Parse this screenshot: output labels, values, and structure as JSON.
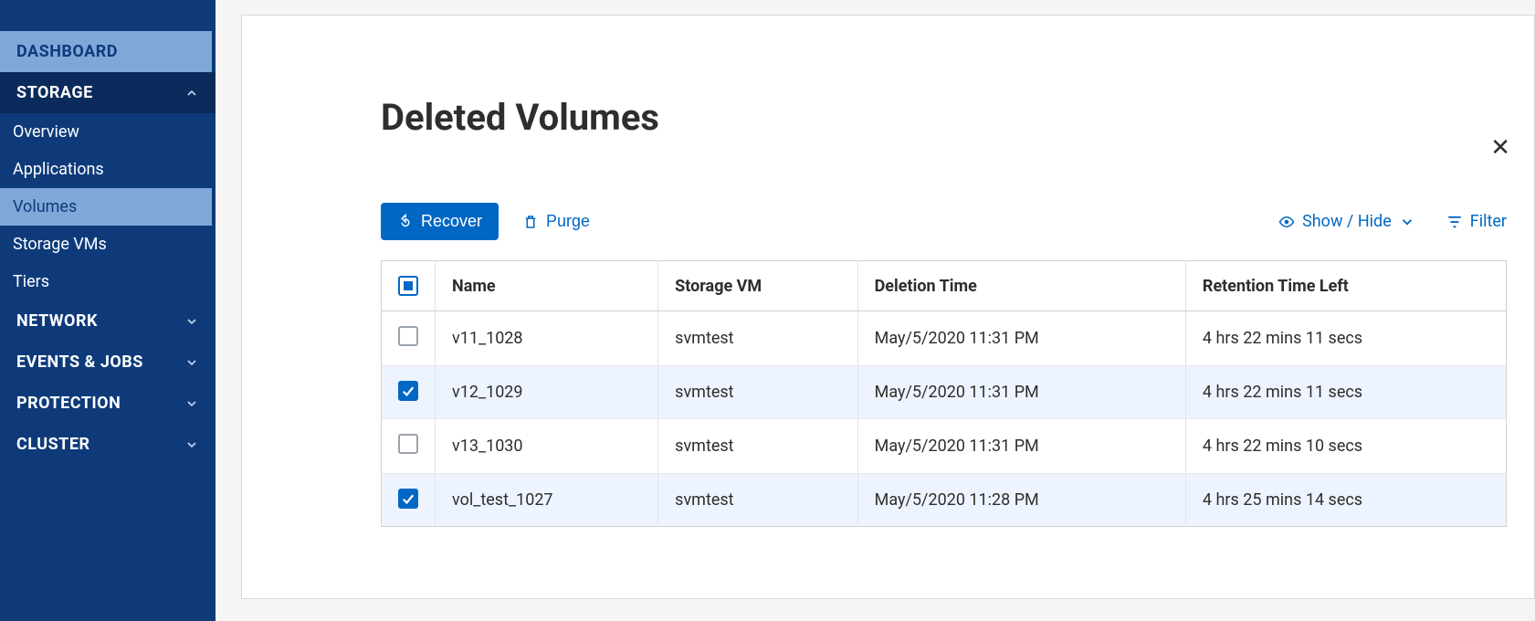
{
  "sidebar": {
    "items": [
      {
        "label": "DASHBOARD",
        "kind": "top",
        "style": "dashboard"
      },
      {
        "label": "STORAGE",
        "kind": "top",
        "expanded": true,
        "style": "expanded"
      },
      {
        "label": "Overview",
        "kind": "sub"
      },
      {
        "label": "Applications",
        "kind": "sub"
      },
      {
        "label": "Volumes",
        "kind": "sub",
        "active": true
      },
      {
        "label": "Storage VMs",
        "kind": "sub"
      },
      {
        "label": "Tiers",
        "kind": "sub"
      },
      {
        "label": "NETWORK",
        "kind": "top"
      },
      {
        "label": "EVENTS & JOBS",
        "kind": "top"
      },
      {
        "label": "PROTECTION",
        "kind": "top"
      },
      {
        "label": "CLUSTER",
        "kind": "top"
      }
    ]
  },
  "page": {
    "title": "Deleted Volumes"
  },
  "toolbar": {
    "recover_label": "Recover",
    "purge_label": "Purge",
    "showhide_label": "Show / Hide",
    "filter_label": "Filter"
  },
  "table": {
    "columns": [
      "Name",
      "Storage VM",
      "Deletion Time",
      "Retention Time Left"
    ],
    "rows": [
      {
        "checked": false,
        "name": "v11_1028",
        "svm": "svmtest",
        "deleted": "May/5/2020 11:31 PM",
        "retention": "4 hrs 22 mins 11 secs"
      },
      {
        "checked": true,
        "name": "v12_1029",
        "svm": "svmtest",
        "deleted": "May/5/2020 11:31 PM",
        "retention": "4 hrs 22 mins 11 secs"
      },
      {
        "checked": false,
        "name": "v13_1030",
        "svm": "svmtest",
        "deleted": "May/5/2020 11:31 PM",
        "retention": "4 hrs 22 mins 10 secs"
      },
      {
        "checked": true,
        "name": "vol_test_1027",
        "svm": "svmtest",
        "deleted": "May/5/2020 11:28 PM",
        "retention": "4 hrs 25 mins 14 secs"
      }
    ],
    "header_check_state": "indeterminate"
  },
  "colors": {
    "sidebar_bg": "#0e3a7a",
    "sidebar_active": "#7fa8d9",
    "primary": "#0067c5",
    "row_selected": "#eef4ff"
  }
}
